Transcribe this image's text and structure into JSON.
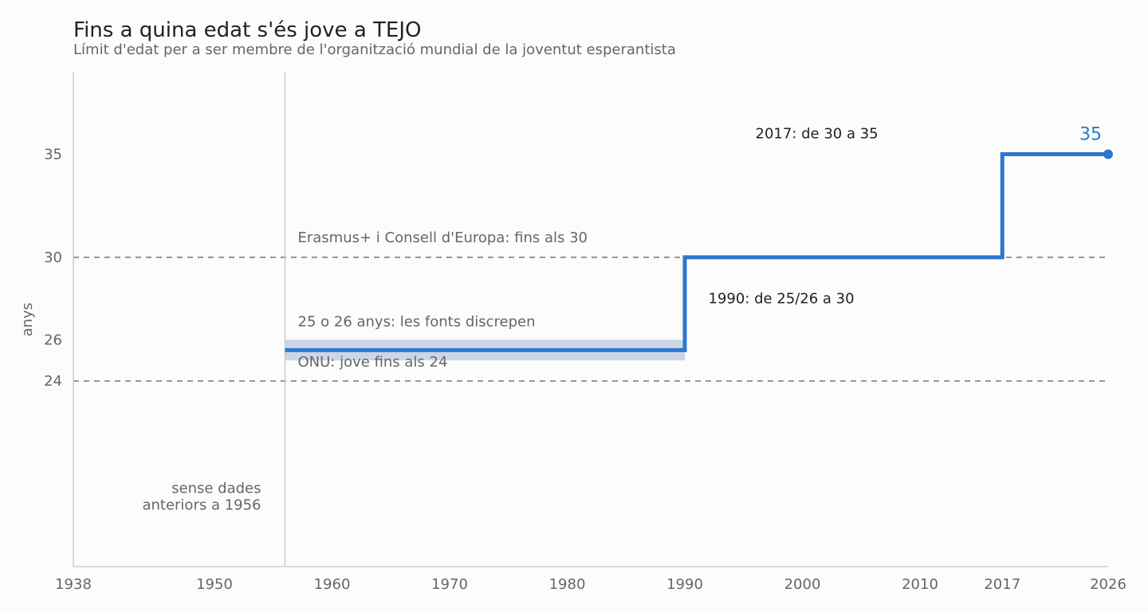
{
  "title": "Fins a quina edat s'és jove a TEJO",
  "subtitle": "Límit d'edat per a ser membre de l'organització mundial de la joventut esperantista",
  "chart_data": {
    "type": "line",
    "step": true,
    "xlim": [
      1938,
      2026
    ],
    "ylim": [
      15,
      39
    ],
    "x_ticks": [
      1938,
      1950,
      1960,
      1970,
      1980,
      1990,
      2000,
      2010,
      2017,
      2026
    ],
    "y_ticks": [
      24,
      26,
      30,
      35
    ],
    "ylabel": "anys",
    "xlabel": "",
    "grid": false,
    "colors": {
      "line": "#2c77cf",
      "band": "#ccd6e4",
      "reference": "#888888",
      "axis": "#cccccc",
      "text_grey": "#666666",
      "text_dark": "#222222"
    },
    "series": [
      {
        "x": [
          1956,
          1990,
          1990,
          2017,
          2017,
          2026
        ],
        "y": [
          25.5,
          25.5,
          30,
          30,
          35,
          35
        ]
      }
    ],
    "uncertainty_band": {
      "x": [
        1956,
        1990
      ],
      "y": [
        25,
        26
      ]
    },
    "reference_lines": [
      {
        "y": 30,
        "label": "Erasmus+ i Consell d'Europa: fins als 30"
      },
      {
        "y": 24,
        "label": "ONU: jove fins als 24"
      }
    ],
    "vertical_marker": {
      "x": 1956
    },
    "annotations": {
      "band": "25 o 26 anys: les fonts discrepen",
      "step_1990": "1990: de 25/26 a 30",
      "step_2017": "2017: de 30 a 35",
      "no_data_line1": "sense dades",
      "no_data_line2": "anteriors a 1956",
      "end_value": "35"
    }
  }
}
